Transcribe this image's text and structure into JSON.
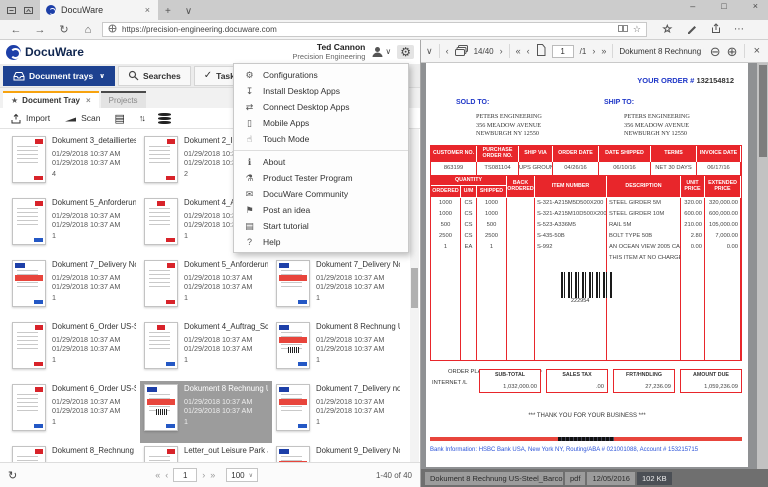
{
  "browser": {
    "tab_title": "DocuWare",
    "url": "https://precision-engineering.docuware.com",
    "window_controls": {
      "minimize": "–",
      "maximize": "□",
      "close": "×"
    },
    "more_label": "⋯"
  },
  "header": {
    "logo_text": "DocuWare",
    "user_name": "Ted Cannon",
    "user_org": "Precision Engineering"
  },
  "nav": {
    "document_trays": "Document trays",
    "searches": "Searches",
    "tasks": "Tasks"
  },
  "tray_tabs": {
    "active": "Document Tray",
    "inactive": "Projects"
  },
  "toolbar": {
    "import_label": "Import",
    "scan_label": "Scan"
  },
  "menu": {
    "groups": [
      [
        {
          "label": "Configurations",
          "icon": "gear-icon",
          "glyph": "⚙"
        },
        {
          "label": "Install Desktop Apps",
          "icon": "download-icon",
          "glyph": "↧"
        },
        {
          "label": "Connect Desktop Apps",
          "icon": "connect-icon",
          "glyph": "⇄"
        },
        {
          "label": "Mobile Apps",
          "icon": "mobile-icon",
          "glyph": "▯"
        },
        {
          "label": "Touch Mode",
          "icon": "touch-icon",
          "glyph": "☝"
        }
      ],
      [
        {
          "label": "About",
          "icon": "info-icon",
          "glyph": "ℹ"
        },
        {
          "label": "Product Tester Program",
          "icon": "flask-icon",
          "glyph": "⚗"
        },
        {
          "label": "DocuWare Community",
          "icon": "speech-bubble-icon",
          "glyph": "✉"
        },
        {
          "label": "Post an idea",
          "icon": "megaphone-icon",
          "glyph": "⚑"
        },
        {
          "label": "Start tutorial",
          "icon": "book-icon",
          "glyph": "▤"
        },
        {
          "label": "Help",
          "icon": "question-icon",
          "glyph": "?"
        }
      ]
    ]
  },
  "documents": [
    {
      "title": "Dokument 3_detailliertes",
      "date1": "01/29/2018 10:37 AM",
      "date2": "01/29/2018 10:37 AM",
      "pages": "4",
      "variant": "letter-red",
      "selected": false
    },
    {
      "title": "Dokument 2_Informat",
      "date1": "01/29/2018 10:37 AM",
      "date2": "01/29/2018 10:37 AM",
      "pages": "2",
      "variant": "letter-red",
      "selected": false
    },
    {
      "title": "",
      "date1": "",
      "date2": "",
      "pages": "",
      "variant": "letter-red",
      "selected": false
    },
    {
      "title": "Dokument 5_Anforderun",
      "date1": "01/29/2018 10:37 AM",
      "date2": "01/29/2018 10:37 AM",
      "pages": "1",
      "variant": "letter-blue",
      "selected": false
    },
    {
      "title": "Dokument 4_Auftrag_",
      "date1": "01/29/2018 10:37 AM",
      "date2": "01/29/2018 10:37 AM",
      "pages": "1",
      "variant": "auftrag",
      "selected": false
    },
    {
      "title": "",
      "date1": "01/29/2018 10:37 AM",
      "date2": "01/29/2018 10:37 AM",
      "pages": "4",
      "variant": "letter-red",
      "selected": false
    },
    {
      "title": "Dokument 7_Delivery No",
      "date1": "01/29/2018 10:37 AM",
      "date2": "01/29/2018 10:37 AM",
      "pages": "1",
      "variant": "delivery",
      "selected": false
    },
    {
      "title": "Dokument 5_Anforderun",
      "date1": "01/29/2018 10:37 AM",
      "date2": "01/29/2018 10:37 AM",
      "pages": "1",
      "variant": "letter-red",
      "selected": false
    },
    {
      "title": "Dokument 7_Delivery No",
      "date1": "01/29/2018 10:37 AM",
      "date2": "01/29/2018 10:37 AM",
      "pages": "1",
      "variant": "delivery",
      "selected": false
    },
    {
      "title": "Dokument 6_Order US-S",
      "date1": "01/29/2018 10:37 AM",
      "date2": "01/29/2018 10:37 AM",
      "pages": "1",
      "variant": "letter-red",
      "selected": false
    },
    {
      "title": "Dokument 4_Auftrag_Sc",
      "date1": "01/29/2018 10:37 AM",
      "date2": "01/29/2018 10:37 AM",
      "pages": "1",
      "variant": "auftrag-blue",
      "selected": false
    },
    {
      "title": "Dokument 8 Rechnung U",
      "date1": "01/29/2018 10:37 AM",
      "date2": "01/29/2018 10:37 AM",
      "pages": "1",
      "variant": "barcode",
      "selected": false
    },
    {
      "title": "Dokument 6_Order US-S",
      "date1": "01/29/2018 10:37 AM",
      "date2": "01/29/2018 10:37 AM",
      "pages": "1",
      "variant": "letter-blue",
      "selected": false
    },
    {
      "title": "Dokument 8 Rechnung U",
      "date1": "01/29/2018 10:37 AM",
      "date2": "01/29/2018 10:37 AM",
      "pages": "1",
      "variant": "barcode",
      "selected": true
    },
    {
      "title": "Dokument 7_Delivery no",
      "date1": "01/29/2018 10:37 AM",
      "date2": "01/29/2018 10:37 AM",
      "pages": "1",
      "variant": "delivery",
      "selected": false
    },
    {
      "title": "Dokument 8_Rechnung I",
      "date1": "",
      "date2": "",
      "pages": "",
      "variant": "letter-red",
      "selected": false
    },
    {
      "title": "Letter_out Leisure Park J",
      "date1": "",
      "date2": "",
      "pages": "",
      "variant": "letter-red",
      "selected": false
    },
    {
      "title": "Dokument 9_Delivery No",
      "date1": "",
      "date2": "",
      "pages": "",
      "variant": "delivery",
      "selected": false
    }
  ],
  "pagination": {
    "page": "1",
    "page_size": "100",
    "range": "1-40 of 40"
  },
  "viewer": {
    "doc_index": "14/40",
    "page_current": "1",
    "page_total": "/1",
    "title": "Dokument 8 Rechnung US-Steel_Barco",
    "footer": {
      "name": "Dokument 8 Rechnung US-Steel_Barcod...",
      "type": "pdf",
      "date": "12/05/2016",
      "size": "102 KB"
    }
  },
  "invoice": {
    "order_label": "YOUR ORDER #",
    "order_number": "132154812",
    "sold_to": "SOLD TO:",
    "ship_to": "SHIP TO:",
    "address": [
      "PETERS ENGINEERING",
      "356 MEADOW AVENUE",
      "NEWBURGH          NY 12550"
    ],
    "meta_headers": [
      "CUSTOMER NO.",
      "PURCHASE ORDER NO.",
      "SHIP VIA",
      "ORDER DATE",
      "DATE SHIPPED",
      "TERMS",
      "INVOICE DATE"
    ],
    "meta_values": [
      "863199",
      "TS081104",
      "UPS GROUND",
      "04/26/16",
      "06/10/16",
      "NET 30 DAYS",
      "06/17/16"
    ],
    "items_headers": {
      "quantity": "QUANTITY",
      "ordered": "ORDERED",
      "um": "U/M",
      "shipped": "SHIPPED",
      "back_ordered": "BACK ORDERED",
      "item_number": "ITEM NUMBER",
      "description": "DESCRIPTION",
      "unit_price": "UNIT PRICE",
      "extended_price": "EXTENDED PRICE"
    },
    "items": [
      {
        "ordered": "1000",
        "um": "CS",
        "shipped": "1000",
        "back": "",
        "item": "S-321-A215M5D500X200",
        "desc": "STEEL GIRDER 5M",
        "unit": "320.00",
        "ext": "320,000.00"
      },
      {
        "ordered": "1000",
        "um": "CS",
        "shipped": "1000",
        "back": "",
        "item": "S-321-A215M10D500X200",
        "desc": "STEEL GIRDER 10M",
        "unit": "600.00",
        "ext": "600,000.00"
      },
      {
        "ordered": "500",
        "um": "CS",
        "shipped": "500",
        "back": "",
        "item": "S-523-A336M5",
        "desc": "RAIL 5M",
        "unit": "210.00",
        "ext": "105,000.00"
      },
      {
        "ordered": "2500",
        "um": "CS",
        "shipped": "2500",
        "back": "",
        "item": "S-435-50B",
        "desc": "BOLT TYPE 50B",
        "unit": "2.80",
        "ext": "7,000.00"
      },
      {
        "ordered": "1",
        "um": "EA",
        "shipped": "1",
        "back": "",
        "item": "S-992",
        "desc": "AN OCEAN VIEW 2005 CALEN",
        "unit": "0.00",
        "ext": "0.00"
      },
      {
        "ordered": "",
        "um": "",
        "shipped": "",
        "back": "",
        "item": "",
        "desc": "THIS ITEM AT NO CHARGE",
        "unit": "",
        "ext": ""
      }
    ],
    "barcode_number": "222954",
    "placed_by": "ORDER PLACED BY:  BRIAN FORD",
    "channel": "INTERNET    /L",
    "totals": [
      {
        "label": "SUB-TOTAL",
        "value": "1,032,000.00"
      },
      {
        "label": "SALES TAX",
        "value": ".00"
      },
      {
        "label": "FRT/HNDLING",
        "value": "27,236.09"
      },
      {
        "label": "AMOUNT DUE",
        "value": "1,059,236.09"
      }
    ],
    "thanks": "*** THANK YOU FOR YOUR BUSINESS ***",
    "bank_info": "Bank Information: HSBC Bank USA, New York NY, Routing/ABA # 021001088, Account # 153215715"
  },
  "colors": {
    "docuware_blue": "#1d4190",
    "accent_orange": "#f7a30f",
    "invoice_red": "#e8262b",
    "invoice_blue": "#2038c8",
    "selected_gray": "#9c9c9c"
  }
}
